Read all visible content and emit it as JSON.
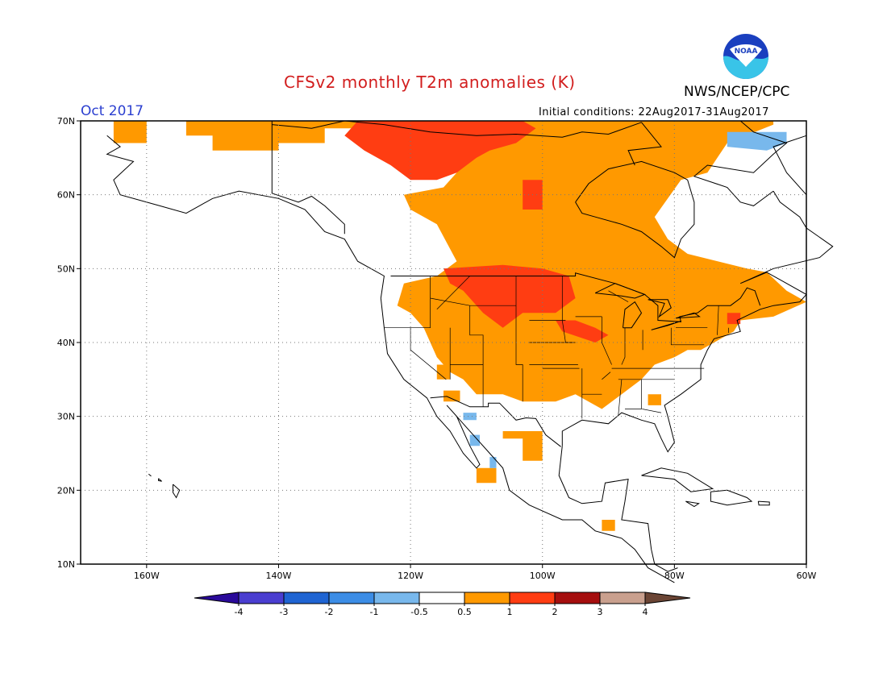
{
  "header": {
    "title": "CFSv2 monthly T2m anomalies (K)",
    "agency": "NWS/NCEP/CPC",
    "logo_text": "NOAA",
    "period": "Oct 2017",
    "initial_conditions": "Initial conditions: 22Aug2017-31Aug2017"
  },
  "map": {
    "lon_range": [
      -170,
      -60
    ],
    "lat_range": [
      10,
      70
    ],
    "lat_ticks": [
      {
        "value": 70,
        "label": "70N"
      },
      {
        "value": 60,
        "label": "60N"
      },
      {
        "value": 50,
        "label": "50N"
      },
      {
        "value": 40,
        "label": "40N"
      },
      {
        "value": 30,
        "label": "30N"
      },
      {
        "value": 20,
        "label": "20N"
      },
      {
        "value": 10,
        "label": "10N"
      }
    ],
    "lon_ticks": [
      {
        "value": -160,
        "label": "160W"
      },
      {
        "value": -140,
        "label": "140W"
      },
      {
        "value": -120,
        "label": "120W"
      },
      {
        "value": -100,
        "label": "100W"
      },
      {
        "value": -80,
        "label": "80W"
      },
      {
        "value": -60,
        "label": "60W"
      }
    ],
    "grid": "dotted"
  },
  "colorbar": {
    "boundaries": [
      "-4",
      "-3",
      "-2",
      "-1",
      "-0.5",
      "0.5",
      "1",
      "2",
      "3",
      "4"
    ],
    "colors": [
      "#2a0a9a",
      "#4a3ed0",
      "#1f64d2",
      "#3c8de6",
      "#78b8ec",
      "#ffffff",
      "#ff9900",
      "#ff3d12",
      "#a50e0e",
      "#c9a08e",
      "#6b4535"
    ]
  },
  "anomaly_colors": {
    "pos_0_5_1": "#ff9900",
    "pos_1_2": "#ff3d12",
    "neg_0_5_1": "#78b8ec"
  }
}
